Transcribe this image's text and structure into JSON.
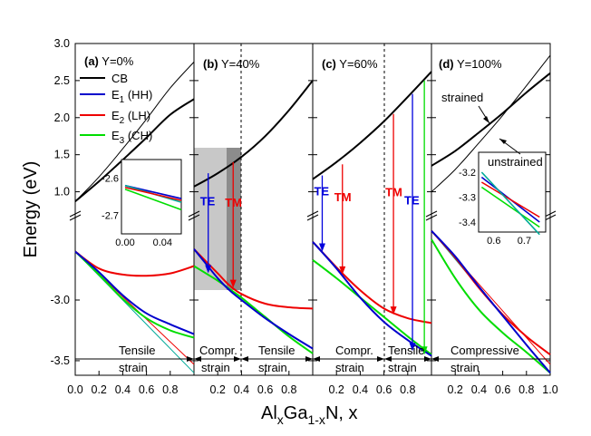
{
  "chart_data": {
    "type": "line",
    "xlabel_parts": [
      "Al",
      "x",
      "Ga",
      "1-x",
      "N, x"
    ],
    "ylabel": "Energy (eV)",
    "ylim_upper": [
      0.75,
      3.0
    ],
    "ylim_lower": [
      -3.62,
      -2.35
    ],
    "upper_ticks": [
      "1.0",
      "1.5",
      "2.0",
      "2.5",
      "3.0"
    ],
    "lower_ticks": [
      "-3.5",
      "-3.0"
    ],
    "x_ticks_first": [
      "0.0",
      "0.2",
      "0.4",
      "0.6",
      "0.8"
    ],
    "x_ticks_inner": [
      "0.2",
      "0.4",
      "0.6",
      "0.8"
    ],
    "x_ticks_last": [
      "0.2",
      "0.4",
      "0.6",
      "0.8",
      "1.0"
    ],
    "legend": [
      {
        "label": "CB",
        "color": "#000000"
      },
      {
        "label_main": "E",
        "label_sub": "1",
        "label_tail": " (HH)",
        "color": "#0000cc"
      },
      {
        "label_main": "E",
        "label_sub": "2",
        "label_tail": " (LH)",
        "color": "#ee0000"
      },
      {
        "label_main": "E",
        "label_sub": "3",
        "label_tail": " (CH)",
        "color": "#00dd00"
      }
    ],
    "panels": [
      {
        "label": "(a)",
        "title": "Y=0%",
        "series": {
          "CB_strained": {
            "x": [
              0,
              0.2,
              0.4,
              0.6,
              0.8,
              1.0
            ],
            "y": [
              0.87,
              1.14,
              1.43,
              1.73,
              2.04,
              2.25
            ]
          },
          "CB_unstrained": {
            "x": [
              0,
              0.2,
              0.4,
              0.6,
              0.8,
              1.0
            ],
            "y": [
              0.87,
              1.2,
              1.58,
              1.98,
              2.4,
              2.75
            ]
          },
          "E1": {
            "x": [
              0,
              0.2,
              0.4,
              0.6,
              0.8,
              1.0
            ],
            "y": [
              -2.6,
              -2.77,
              -2.96,
              -3.11,
              -3.2,
              -3.28
            ]
          },
          "E2": {
            "x": [
              0,
              0.2,
              0.4,
              0.6,
              0.8,
              1.0
            ],
            "y": [
              -2.6,
              -2.74,
              -2.79,
              -2.8,
              -2.78,
              -2.72
            ]
          },
          "E3": {
            "x": [
              0,
              0.2,
              0.4,
              0.6,
              0.8,
              1.0
            ],
            "y": [
              -2.6,
              -2.79,
              -2.99,
              -3.15,
              -3.25,
              -3.31
            ]
          },
          "thin_lines": [
            {
              "x": [
                0,
                1.0
              ],
              "y": [
                -2.6,
                -3.6
              ],
              "color": "#00aa99"
            },
            {
              "x": [
                0,
                1.0
              ],
              "y": [
                -2.6,
                -3.53
              ],
              "color": "#ee0000"
            }
          ]
        },
        "inset": {
          "ticks_x": [
            "0.00",
            "0.04"
          ],
          "ticks_y": [
            "-2.6",
            "-2.7"
          ]
        },
        "strain": [
          "Tensile",
          "strain"
        ]
      },
      {
        "label": "(b)",
        "title": "Y=40%",
        "series": {
          "CB": {
            "x": [
              0,
              0.2,
              0.4,
              0.6,
              0.8,
              1.0
            ],
            "y": [
              1.07,
              1.25,
              1.47,
              1.75,
              2.1,
              2.5
            ]
          },
          "E1": {
            "x": [
              0,
              0.1,
              0.2,
              0.3,
              0.4,
              0.6,
              0.8,
              1.0
            ],
            "y": [
              -2.58,
              -2.7,
              -2.82,
              -2.92,
              -3.0,
              -3.15,
              -3.28,
              -3.4
            ]
          },
          "E2": {
            "x": [
              0,
              0.2,
              0.3,
              0.4,
              0.6,
              0.8,
              1.0
            ],
            "y": [
              -2.58,
              -2.78,
              -2.88,
              -2.95,
              -3.03,
              -3.06,
              -3.07
            ]
          },
          "E3": {
            "x": [
              0,
              0.2,
              0.3,
              0.4,
              0.6,
              0.8,
              1.0
            ],
            "y": [
              -2.72,
              -2.84,
              -2.91,
              -2.98,
              -3.14,
              -3.3,
              -3.44
            ]
          },
          "arrows": [
            {
              "label": "TE",
              "x": 0.12,
              "from": 1.25,
              "to": -2.78,
              "color": "#0000dd"
            },
            {
              "label": "TM",
              "x": 0.33,
              "from": 1.4,
              "to": -2.9,
              "color": "#ee0000"
            }
          ]
        },
        "dashed_x": 0.4,
        "shade": {
          "x_light": [
            0,
            0.27
          ],
          "x_dark": [
            0.27,
            0.4
          ]
        },
        "strain_left": [
          "Compr.",
          "strain"
        ],
        "strain_right": [
          "Tensile",
          "strain"
        ]
      },
      {
        "label": "(c)",
        "title": "Y=60%",
        "series": {
          "CB": {
            "x": [
              0,
              0.2,
              0.4,
              0.6,
              0.8,
              1.0
            ],
            "y": [
              1.17,
              1.4,
              1.66,
              1.95,
              2.28,
              2.62
            ]
          },
          "E1": {
            "x": [
              0,
              0.2,
              0.4,
              0.6,
              0.8,
              1.0
            ],
            "y": [
              -2.52,
              -2.74,
              -2.98,
              -3.18,
              -3.33,
              -3.46
            ]
          },
          "E2": {
            "x": [
              0,
              0.2,
              0.4,
              0.6,
              0.8,
              1.0
            ],
            "y": [
              -2.52,
              -2.73,
              -2.92,
              -3.07,
              -3.15,
              -3.19
            ]
          },
          "E3": {
            "x": [
              0,
              0.2,
              0.4,
              0.6,
              0.8,
              1.0
            ],
            "y": [
              -2.67,
              -2.82,
              -2.98,
              -3.14,
              -3.3,
              -3.45
            ]
          },
          "arrows": [
            {
              "label": "TE",
              "x": 0.08,
              "from": 1.22,
              "to": -2.6,
              "color": "#0000dd"
            },
            {
              "label": "TM",
              "x": 0.25,
              "from": 1.37,
              "to": -2.79,
              "color": "#ee0000"
            },
            {
              "label": "TM",
              "x": 0.68,
              "from": 2.05,
              "to": -3.12,
              "color": "#ee0000"
            },
            {
              "label": "TE",
              "x": 0.84,
              "from": 2.32,
              "to": -3.42,
              "color": "#0000dd"
            },
            {
              "label": "",
              "x": 0.94,
              "from": 2.5,
              "to": -3.45,
              "color": "#00dd00"
            }
          ]
        },
        "dashed_x": 0.6,
        "strain_left": [
          "Compr.",
          "strain"
        ],
        "strain_right": [
          "Tensile",
          "strain"
        ]
      },
      {
        "label": "(d)",
        "title": "Y=100%",
        "series": {
          "CB_strained": {
            "x": [
              0,
              0.2,
              0.4,
              0.6,
              0.8,
              1.0
            ],
            "y": [
              1.35,
              1.55,
              1.8,
              2.06,
              2.34,
              2.6
            ]
          },
          "CB_unstrained": {
            "x": [
              0,
              0.2,
              0.4,
              0.6,
              0.8,
              1.0
            ],
            "y": [
              1.0,
              1.3,
              1.66,
              2.03,
              2.43,
              2.84
            ]
          },
          "E1": {
            "x": [
              0,
              0.2,
              0.4,
              0.6,
              0.8,
              1.0
            ],
            "y": [
              -2.43,
              -2.64,
              -2.89,
              -3.13,
              -3.37,
              -3.6
            ]
          },
          "E2": {
            "x": [
              0,
              0.2,
              0.4,
              0.6,
              0.8,
              1.0
            ],
            "y": [
              -2.43,
              -2.65,
              -2.9,
              -3.12,
              -3.3,
              -3.45
            ]
          },
          "E3": {
            "x": [
              0,
              0.2,
              0.4,
              0.6,
              0.8,
              1.0
            ],
            "y": [
              -2.5,
              -2.82,
              -3.08,
              -3.27,
              -3.43,
              -3.6
            ]
          },
          "thin_lines": [
            {
              "x": [
                0,
                1.0
              ],
              "y": [
                -2.43,
                -3.53
              ],
              "color": "#ee0000"
            },
            {
              "x": [
                0,
                1.0
              ],
              "y": [
                -2.43,
                -3.6
              ],
              "color": "#00aa99"
            }
          ]
        },
        "annotations": [
          "strained",
          "unstrained"
        ],
        "inset": {
          "ticks_x": [
            "0.6",
            "0.7"
          ],
          "ticks_y": [
            "-3.2",
            "-3.3",
            "-3.4"
          ]
        },
        "strain": [
          "Compressive",
          "strain"
        ]
      }
    ],
    "arrow_labels": {
      "te": "TE",
      "tm": "TM"
    }
  }
}
